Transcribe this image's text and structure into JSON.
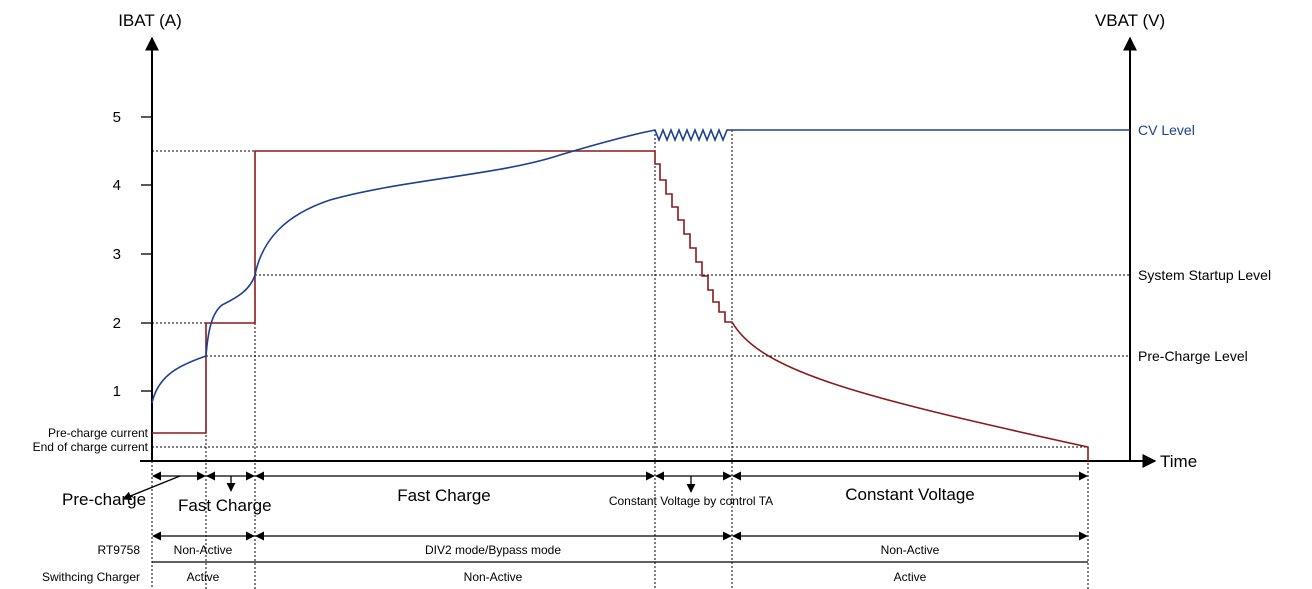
{
  "axes": {
    "left_title": "IBAT (A)",
    "right_title": "VBAT (V)",
    "x_title": "Time",
    "y_ticks": [
      "1",
      "2",
      "3",
      "4",
      "5"
    ]
  },
  "levels": {
    "cv": "CV Level",
    "system_startup": "System Startup Level",
    "pre_charge": "Pre-Charge Level",
    "pre_charge_current": "Pre-charge current",
    "end_of_charge_current": "End of charge current"
  },
  "phases": {
    "pre_charge": "Pre-charge",
    "fast_charge_1": "Fast Charge",
    "fast_charge_2": "Fast Charge",
    "cv_ta": "Constant Voltage by control TA",
    "constant_voltage": "Constant Voltage"
  },
  "rows": [
    {
      "label": "RT9758",
      "segments": [
        "Non-Active",
        "DIV2 mode/Bypass mode",
        "Non-Active"
      ]
    },
    {
      "label": "Swithcing Charger",
      "segments": [
        "Active",
        "Non-Active",
        "Active"
      ]
    }
  ],
  "colors": {
    "current": "#8b1a1a",
    "voltage": "#1b3f93",
    "axis": "#000000"
  }
}
